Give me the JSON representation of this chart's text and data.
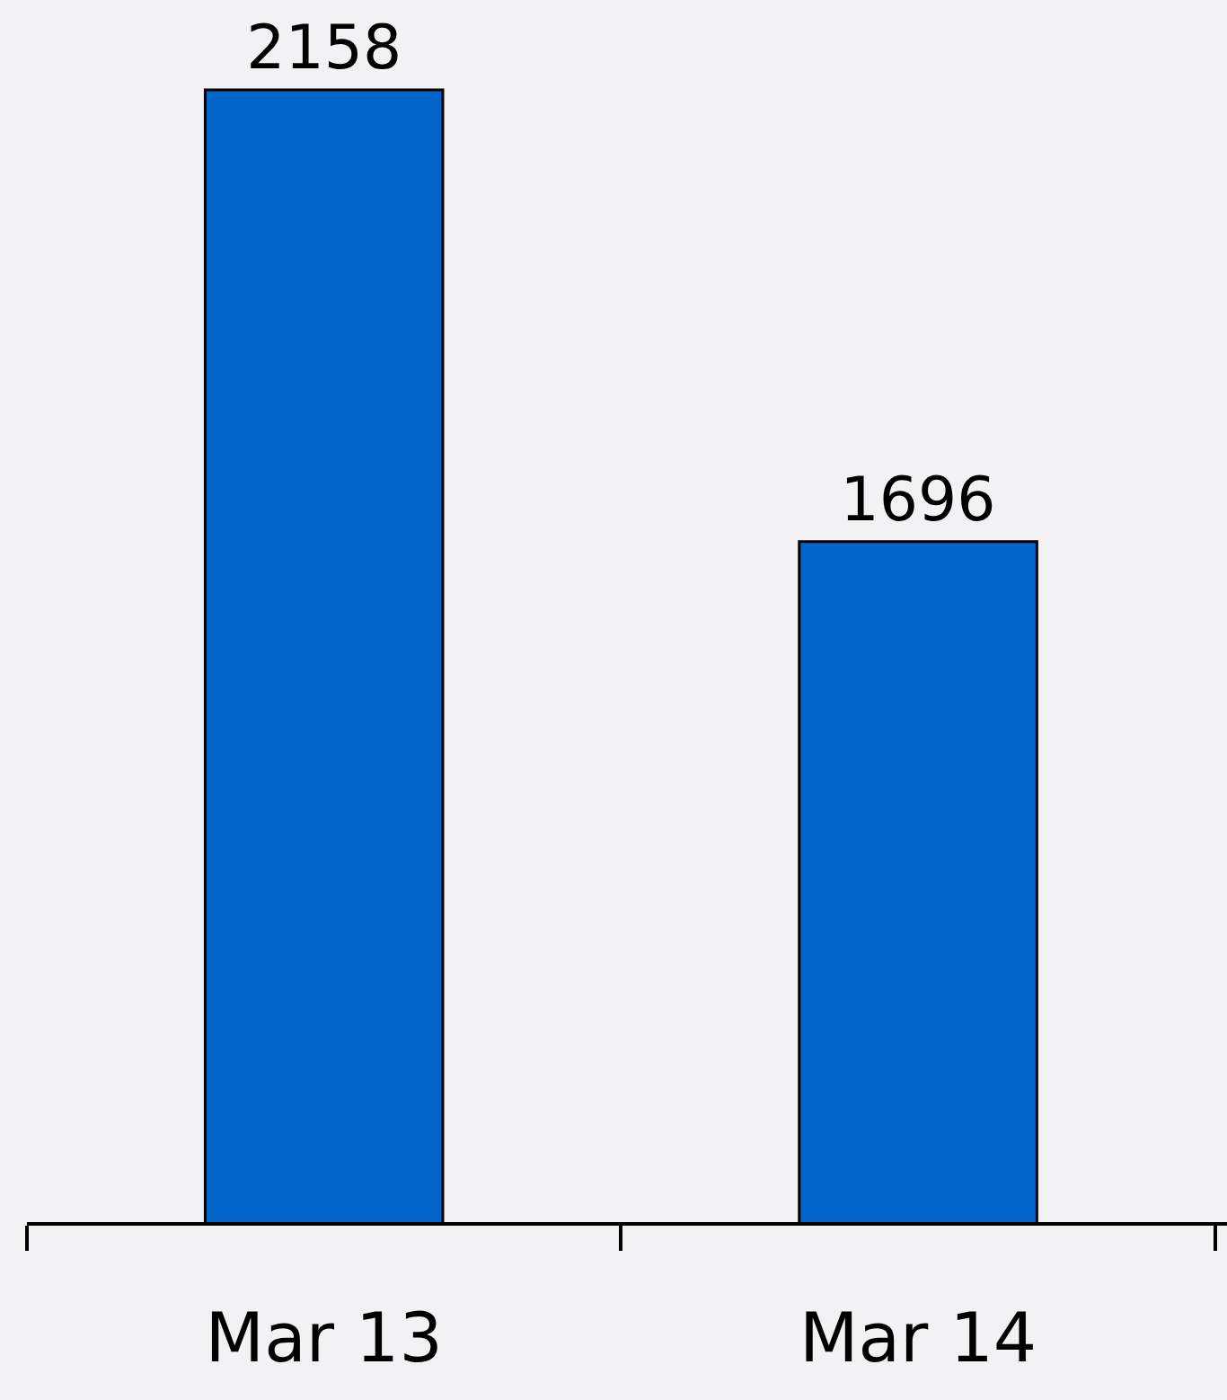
{
  "chart_data": {
    "type": "bar",
    "categories": [
      "Mar 13",
      "Mar 14"
    ],
    "values": [
      2158,
      1696
    ],
    "color": "#0066cc",
    "ylim": [
      1000,
      2250
    ],
    "data_labels": true,
    "tick_labels": "x",
    "grid": false,
    "legend": false
  }
}
